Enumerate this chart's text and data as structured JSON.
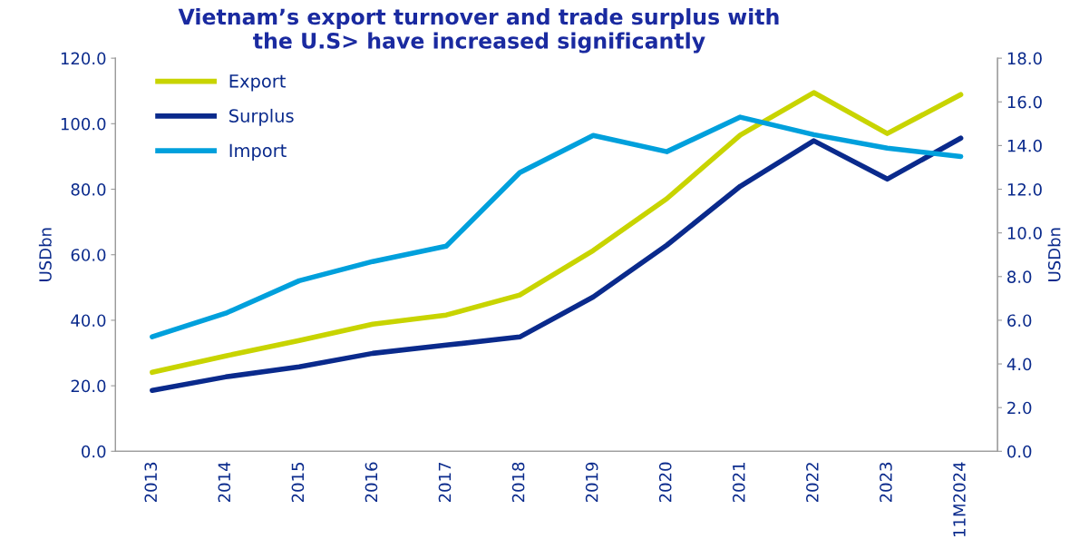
{
  "chart_data": {
    "type": "line",
    "title": "Vietnam’s export turnover and trade surplus with\nthe U.S> have increased significantly",
    "ylabel": "USDbn",
    "y2label": "USDbn",
    "categories": [
      "2013",
      "2014",
      "2015",
      "2016",
      "2017",
      "2018",
      "2019",
      "2020",
      "2021",
      "2022",
      "2023",
      "11M2024"
    ],
    "series": [
      {
        "name": "Export",
        "color": "#c8d400",
        "values": [
          24.1,
          29.1,
          33.8,
          38.8,
          41.6,
          47.7,
          61.3,
          77.1,
          96.5,
          109.5,
          97.0,
          108.9
        ]
      },
      {
        "name": "Surplus",
        "color": "#0a2a8c",
        "values": [
          18.6,
          22.7,
          25.8,
          29.9,
          32.4,
          34.9,
          47.1,
          62.9,
          80.9,
          94.8,
          83.1,
          95.6
        ]
      },
      {
        "name": "Import",
        "color": "#00a0dc",
        "axis": "y2",
        "values": [
          5.24,
          6.32,
          7.81,
          8.69,
          9.39,
          12.76,
          14.46,
          13.72,
          15.3,
          14.5,
          13.88,
          13.5
        ]
      }
    ],
    "ylim": [
      0,
      120
    ],
    "yticks": [
      {
        "value": 0,
        "label": "0.0"
      },
      {
        "value": 20,
        "label": "20.0"
      },
      {
        "value": 40,
        "label": "40.0"
      },
      {
        "value": 60,
        "label": "60.0"
      },
      {
        "value": 80,
        "label": "80.0"
      },
      {
        "value": 100,
        "label": "100.0"
      },
      {
        "value": 120,
        "label": "120.0"
      }
    ],
    "y2lim": [
      0,
      18
    ],
    "y2ticks": [
      {
        "value": 0,
        "label": "0.0"
      },
      {
        "value": 2,
        "label": "2.0"
      },
      {
        "value": 4,
        "label": "4.0"
      },
      {
        "value": 6,
        "label": "6.0"
      },
      {
        "value": 8,
        "label": "8.0"
      },
      {
        "value": 10,
        "label": "10.0"
      },
      {
        "value": 12,
        "label": "12.0"
      },
      {
        "value": 14,
        "label": "14.0"
      },
      {
        "value": 16,
        "label": "16.0"
      },
      {
        "value": 18,
        "label": "18.0"
      }
    ],
    "grid": false,
    "legend": "top left",
    "marker": "none",
    "line_style": "solid"
  }
}
